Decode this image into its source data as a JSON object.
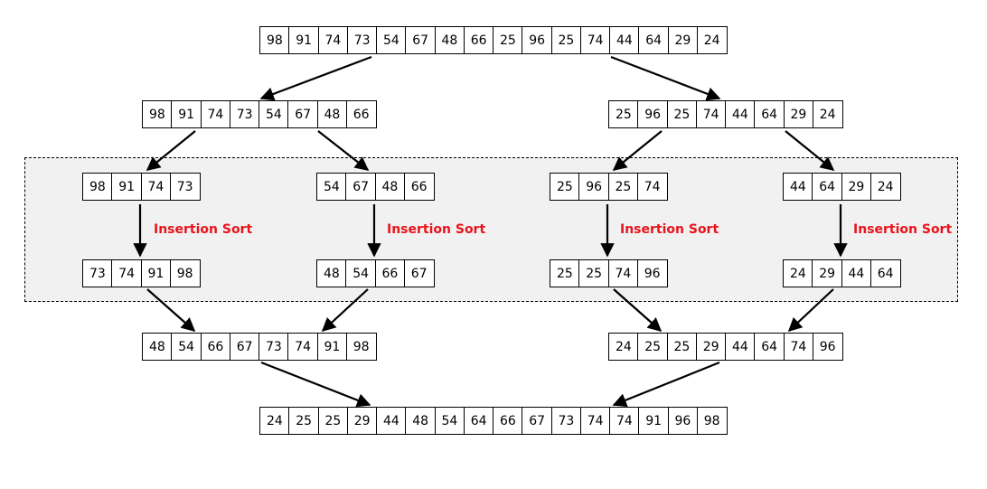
{
  "diagram": {
    "title": "",
    "step_label": "Insertion Sort",
    "label_color": "#e8141c",
    "region_background": "#f1f1f1",
    "levels": [
      {
        "name": "input",
        "arrays": [
          [
            98,
            91,
            74,
            73,
            54,
            67,
            48,
            66,
            25,
            96,
            25,
            74,
            44,
            64,
            29,
            24
          ]
        ]
      },
      {
        "name": "split-1",
        "arrays": [
          [
            98,
            91,
            74,
            73,
            54,
            67,
            48,
            66
          ],
          [
            25,
            96,
            25,
            74,
            44,
            64,
            29,
            24
          ]
        ]
      },
      {
        "name": "split-2",
        "arrays": [
          [
            98,
            91,
            74,
            73
          ],
          [
            54,
            67,
            48,
            66
          ],
          [
            25,
            96,
            25,
            74
          ],
          [
            44,
            64,
            29,
            24
          ]
        ]
      },
      {
        "name": "insertion-sorted",
        "arrays": [
          [
            73,
            74,
            91,
            98
          ],
          [
            48,
            54,
            66,
            67
          ],
          [
            25,
            25,
            74,
            96
          ],
          [
            24,
            29,
            44,
            64
          ]
        ]
      },
      {
        "name": "merge-1",
        "arrays": [
          [
            48,
            54,
            66,
            67,
            73,
            74,
            91,
            98
          ],
          [
            24,
            25,
            25,
            29,
            44,
            64,
            74,
            96
          ]
        ]
      },
      {
        "name": "output",
        "arrays": [
          [
            24,
            25,
            25,
            29,
            44,
            48,
            54,
            64,
            66,
            67,
            73,
            74,
            74,
            91,
            96,
            98
          ]
        ]
      }
    ]
  }
}
